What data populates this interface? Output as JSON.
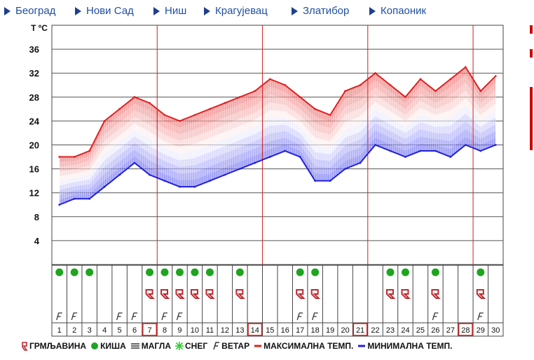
{
  "nav": {
    "items": [
      {
        "label": "Београд"
      },
      {
        "label": "Нови Сад"
      },
      {
        "label": "Ниш"
      },
      {
        "label": "Крагујевац"
      },
      {
        "label": "Златибор"
      },
      {
        "label": "Копаоник"
      }
    ]
  },
  "chart_data": {
    "type": "line",
    "ylabel": "T ºC",
    "ylim": [
      0,
      40
    ],
    "yticks": [
      4,
      8,
      12,
      16,
      20,
      24,
      28,
      32,
      36
    ],
    "days": [
      "1",
      "2",
      "3",
      "4",
      "5",
      "6",
      "7",
      "8",
      "9",
      "10",
      "11",
      "12",
      "13",
      "14",
      "15",
      "16",
      "17",
      "18",
      "19",
      "20",
      "21",
      "22",
      "23",
      "24",
      "25",
      "26",
      "27",
      "28",
      "29",
      "30"
    ],
    "highlighted_days": [
      "7",
      "14",
      "21",
      "28"
    ],
    "series": [
      {
        "name": "МАКСИМАЛНА ТЕМП.",
        "color": "#e02020",
        "values": [
          18,
          18,
          19,
          24,
          26,
          28,
          27,
          25,
          24,
          25,
          26,
          27,
          28,
          29,
          31,
          30,
          28,
          26,
          25,
          29,
          30,
          32,
          30,
          28,
          31,
          29,
          31,
          33,
          29,
          31.5
        ]
      },
      {
        "name": "МИНИМАЛНА ТЕМП.",
        "color": "#2020e0",
        "values": [
          10,
          11,
          11,
          13,
          15,
          17,
          15,
          14,
          13,
          13,
          14,
          15,
          16,
          17,
          18,
          19,
          18,
          14,
          14,
          16,
          17,
          20,
          19,
          18,
          19,
          19,
          18,
          20,
          19,
          20
        ]
      }
    ],
    "rain": [
      "1",
      "2",
      "3",
      "7",
      "8",
      "9",
      "10",
      "11",
      "13",
      "17",
      "18",
      "23",
      "24",
      "26",
      "29"
    ],
    "thunder": [
      "7",
      "8",
      "9",
      "10",
      "11",
      "13",
      "17",
      "18",
      "23",
      "24",
      "26",
      "29"
    ],
    "wind": [
      "1",
      "2",
      "5",
      "6",
      "8",
      "9",
      "17",
      "18",
      "26",
      "29"
    ]
  },
  "legend": {
    "items": [
      {
        "icon": "thunder-icon",
        "label": "ГРМЉАВИНА"
      },
      {
        "icon": "rain-icon",
        "label": "КИША"
      },
      {
        "icon": "fog-icon",
        "label": "МАГЛА"
      },
      {
        "icon": "snow-icon",
        "label": "СНЕГ"
      },
      {
        "icon": "wind-icon",
        "label": "ВЕТАР"
      },
      {
        "icon": "max-temp-line-icon",
        "label": "МАКСИМАЛНА ТЕМП."
      },
      {
        "icon": "min-temp-line-icon",
        "label": "МИНИМАЛНА ТЕМП."
      }
    ]
  },
  "colors": {
    "thunder": "#c0282e",
    "rain": "#1ea51e",
    "snow": "#33cc33",
    "accent_line": "#cc2222"
  }
}
